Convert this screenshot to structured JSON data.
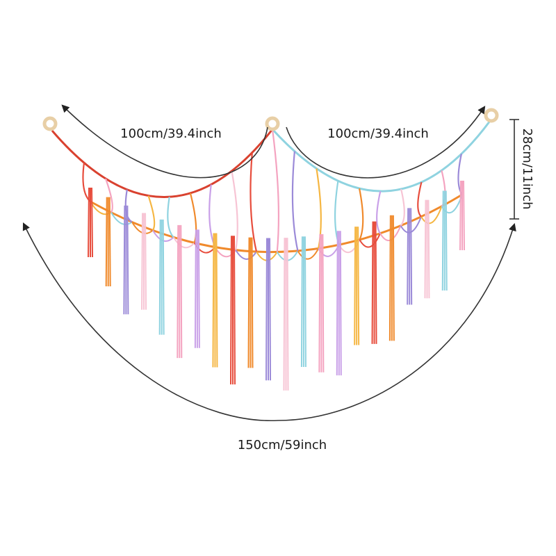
{
  "labels": {
    "left_span": "100cm/39.4inch",
    "right_span": "100cm/39.4inch",
    "height": "28cm/11inch",
    "total_span": "150cm/59inch"
  }
}
